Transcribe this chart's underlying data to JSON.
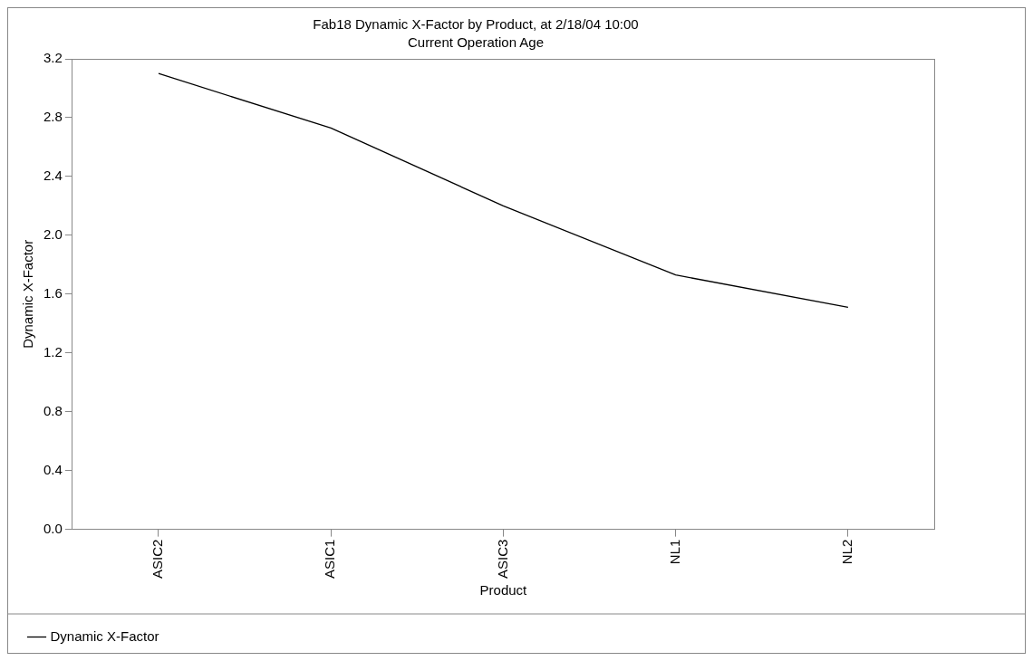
{
  "chart_data": {
    "type": "line",
    "title": "Fab18 Dynamic X-Factor by Product, at 2/18/04 10:00",
    "subtitle": "Current Operation Age",
    "xlabel": "Product",
    "ylabel": "Dynamic X-Factor",
    "categories": [
      "ASIC2",
      "ASIC1",
      "ASIC3",
      "NL1",
      "NL2"
    ],
    "series": [
      {
        "name": "Dynamic X-Factor",
        "color": "#000000",
        "values": [
          3.1,
          2.73,
          2.2,
          1.73,
          1.51
        ]
      }
    ],
    "ylim": [
      0,
      3.2
    ],
    "yticks": [
      {
        "value": 0,
        "label": "0.0"
      },
      0.4,
      0.8,
      1.2,
      1.6,
      {
        "value": 2,
        "label": "2.0"
      },
      2.4,
      2.8,
      3.2
    ],
    "grid": false,
    "legend": "bottom left",
    "marker": "none",
    "line_style": "solid"
  }
}
